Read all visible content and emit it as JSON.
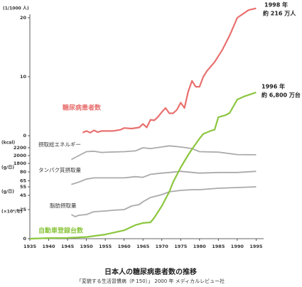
{
  "chart_data": {
    "type": "line",
    "title": "日本人の糖尿病患者数の推移",
    "source": "「変貌する生活習慣病（P 150）」 2000 年 メディカルレビュー社",
    "xlim": [
      1935,
      1997
    ],
    "xticks": [
      1935,
      1940,
      1945,
      1950,
      1955,
      1960,
      1965,
      1970,
      1975,
      1980,
      1985,
      1990,
      1995
    ],
    "annotations": [
      "1998 年",
      "約 216 万人",
      "1996 年",
      "約 6,800 万台"
    ],
    "series": [
      {
        "name": "糖尿病患者数",
        "color": "#e8706f",
        "unit": "(1/1000 人)",
        "ylim": [
          0,
          20
        ],
        "yticks": [
          0,
          10,
          20
        ],
        "x": [
          1949,
          1950,
          1951,
          1952,
          1953,
          1954,
          1955,
          1957,
          1959,
          1960,
          1962,
          1964,
          1965,
          1966,
          1967,
          1968,
          1969,
          1970,
          1971,
          1972,
          1973,
          1974,
          1975,
          1976,
          1977,
          1978,
          1979,
          1980,
          1981,
          1982,
          1984,
          1986,
          1988,
          1990,
          1993,
          1995
        ],
        "values": [
          0.5,
          0.8,
          0.5,
          0.9,
          0.6,
          0.8,
          0.8,
          0.8,
          1.0,
          1.3,
          1.2,
          1.4,
          2.0,
          1.4,
          2.7,
          2.6,
          3.2,
          4.0,
          4.7,
          3.8,
          3.8,
          4.4,
          5.6,
          4.7,
          7.5,
          9.3,
          8.3,
          8.3,
          10,
          11,
          12.5,
          14.5,
          17,
          20,
          21.3,
          21.6
        ]
      },
      {
        "name": "摂取総エネルギー",
        "color": "#aaaaaa",
        "unit": "(kcal)",
        "ylim": [
          1800,
          2200
        ],
        "yticks": [
          1800,
          2000,
          2200
        ],
        "x": [
          1946,
          1948,
          1950,
          1952,
          1954,
          1956,
          1960,
          1963,
          1965,
          1967,
          1970,
          1972,
          1975,
          1978,
          1980,
          1985,
          1990,
          1995
        ],
        "values": [
          1900,
          2000,
          2100,
          2110,
          2080,
          2090,
          2100,
          2120,
          2200,
          2180,
          2220,
          2250,
          2220,
          2180,
          2100,
          2090,
          2026,
          2020
        ]
      },
      {
        "name": "タンパク質摂取量",
        "color": "#aaaaaa",
        "unit": "(g/日)",
        "ylim": [
          55,
          80
        ],
        "yticks": [
          55,
          65,
          80
        ],
        "x": [
          1946,
          1948,
          1950,
          1952,
          1955,
          1960,
          1963,
          1965,
          1967,
          1970,
          1972,
          1975,
          1980,
          1985,
          1990,
          1995
        ],
        "values": [
          59,
          63,
          68,
          70,
          70,
          70,
          72,
          71,
          76,
          78,
          79,
          81,
          78,
          79,
          79,
          81
        ]
      },
      {
        "name": "脂肪摂取量",
        "color": "#aaaaaa",
        "unit": "(g/日)",
        "ylim": [
          15,
          55
        ],
        "yticks": [
          25,
          45
        ],
        "x": [
          1946,
          1947,
          1948,
          1950,
          1952,
          1955,
          1957,
          1960,
          1962,
          1964,
          1965,
          1967,
          1970,
          1972,
          1975,
          1978,
          1980,
          1985,
          1990,
          1995
        ],
        "values": [
          18,
          15,
          17,
          18,
          22,
          23,
          24,
          25,
          30,
          32,
          36,
          42,
          46,
          50,
          52,
          53,
          53,
          55,
          56,
          57
        ]
      },
      {
        "name": "自動車登録台数",
        "color": "#8cc63f",
        "unit": "(×10⁴/年)",
        "ylim": [
          0,
          8000
        ],
        "yticks": [
          0
        ],
        "x": [
          1935,
          1940,
          1945,
          1950,
          1955,
          1960,
          1963,
          1965,
          1967,
          1968,
          1970,
          1972,
          1973,
          1975,
          1977,
          1978,
          1980,
          1981,
          1983,
          1984,
          1985,
          1987,
          1988,
          1990,
          1992,
          1995
        ],
        "values": [
          0,
          30,
          40,
          80,
          200,
          400,
          650,
          750,
          780,
          1000,
          1560,
          2240,
          2700,
          3400,
          4000,
          4270,
          4780,
          5000,
          5150,
          5200,
          5800,
          5900,
          6000,
          6640,
          6800,
          6980
        ]
      }
    ]
  }
}
